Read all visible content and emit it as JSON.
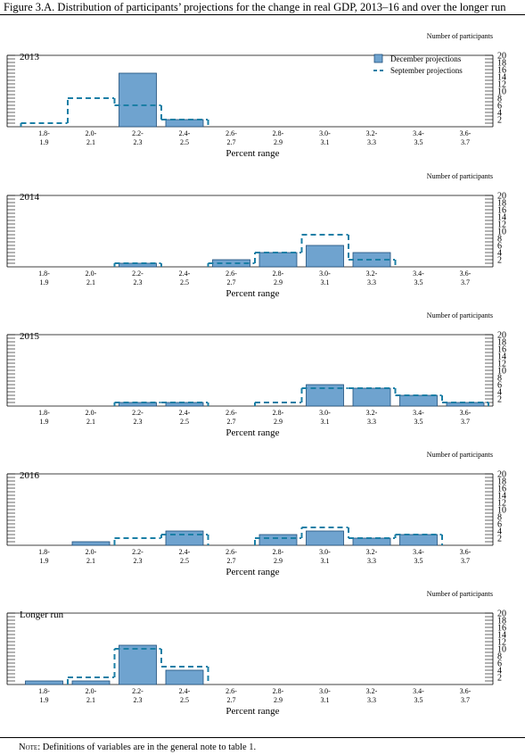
{
  "figure_title": "Figure 3.A. Distribution of participants’ projections for the change in real GDP, 2013–16 and over the longer run",
  "note_prefix": "Note:",
  "note_text": " Definitions of variables are in the general note to table 1.",
  "colors": {
    "bar_fill": "#6fa3cf",
    "bar_stroke": "#1f4e7a",
    "dash": "#1b7fa6"
  },
  "chart_data": [
    {
      "type": "bar",
      "title": "2013",
      "xlabel": "Percent range",
      "ylabel": "Number of participants",
      "categories": [
        [
          "1.8-",
          "1.9"
        ],
        [
          "2.0-",
          "2.1"
        ],
        [
          "2.2-",
          "2.3"
        ],
        [
          "2.4-",
          "2.5"
        ],
        [
          "2.6-",
          "2.7"
        ],
        [
          "2.8-",
          "2.9"
        ],
        [
          "3.0-",
          "3.1"
        ],
        [
          "3.2-",
          "3.3"
        ],
        [
          "3.4-",
          "3.5"
        ],
        [
          "3.6-",
          "3.7"
        ]
      ],
      "yticks": [
        2,
        4,
        6,
        8,
        10,
        12,
        14,
        16,
        18,
        20
      ],
      "ylim": [
        0,
        20
      ],
      "legend": {
        "position": "top-right",
        "entries": [
          "December projections",
          "September projections"
        ]
      },
      "series": [
        {
          "name": "December projections",
          "style": "bar",
          "values": [
            0,
            0,
            15,
            2,
            0,
            0,
            0,
            0,
            0,
            0
          ]
        },
        {
          "name": "September projections",
          "style": "dashed-step",
          "values": [
            1,
            8,
            6,
            2,
            0,
            0,
            0,
            0,
            0,
            0
          ]
        }
      ]
    },
    {
      "type": "bar",
      "title": "2014",
      "xlabel": "Percent range",
      "ylabel": "Number of participants",
      "categories": [
        [
          "1.8-",
          "1.9"
        ],
        [
          "2.0-",
          "2.1"
        ],
        [
          "2.2-",
          "2.3"
        ],
        [
          "2.4-",
          "2.5"
        ],
        [
          "2.6-",
          "2.7"
        ],
        [
          "2.8-",
          "2.9"
        ],
        [
          "3.0-",
          "3.1"
        ],
        [
          "3.2-",
          "3.3"
        ],
        [
          "3.4-",
          "3.5"
        ],
        [
          "3.6-",
          "3.7"
        ]
      ],
      "yticks": [
        2,
        4,
        6,
        8,
        10,
        12,
        14,
        16,
        18,
        20
      ],
      "ylim": [
        0,
        20
      ],
      "series": [
        {
          "name": "December projections",
          "style": "bar",
          "values": [
            0,
            0,
            1,
            0,
            2,
            4,
            6,
            4,
            0,
            0
          ]
        },
        {
          "name": "September projections",
          "style": "dashed-step",
          "values": [
            0,
            0,
            1,
            0,
            1,
            4,
            9,
            2,
            0,
            0
          ]
        }
      ]
    },
    {
      "type": "bar",
      "title": "2015",
      "xlabel": "Percent range",
      "ylabel": "Number of participants",
      "categories": [
        [
          "1.8-",
          "1.9"
        ],
        [
          "2.0-",
          "2.1"
        ],
        [
          "2.2-",
          "2.3"
        ],
        [
          "2.4-",
          "2.5"
        ],
        [
          "2.6-",
          "2.7"
        ],
        [
          "2.8-",
          "2.9"
        ],
        [
          "3.0-",
          "3.1"
        ],
        [
          "3.2-",
          "3.3"
        ],
        [
          "3.4-",
          "3.5"
        ],
        [
          "3.6-",
          "3.7"
        ]
      ],
      "yticks": [
        2,
        4,
        6,
        8,
        10,
        12,
        14,
        16,
        18,
        20
      ],
      "ylim": [
        0,
        20
      ],
      "series": [
        {
          "name": "December projections",
          "style": "bar",
          "values": [
            0,
            0,
            1,
            1,
            0,
            0,
            6,
            5,
            3,
            1
          ]
        },
        {
          "name": "September projections",
          "style": "dashed-step",
          "values": [
            0,
            0,
            1,
            1,
            0,
            1,
            5,
            5,
            3,
            1
          ]
        }
      ]
    },
    {
      "type": "bar",
      "title": "2016",
      "xlabel": "Percent range",
      "ylabel": "Number of participants",
      "categories": [
        [
          "1.8-",
          "1.9"
        ],
        [
          "2.0-",
          "2.1"
        ],
        [
          "2.2-",
          "2.3"
        ],
        [
          "2.4-",
          "2.5"
        ],
        [
          "2.6-",
          "2.7"
        ],
        [
          "2.8-",
          "2.9"
        ],
        [
          "3.0-",
          "3.1"
        ],
        [
          "3.2-",
          "3.3"
        ],
        [
          "3.4-",
          "3.5"
        ],
        [
          "3.6-",
          "3.7"
        ]
      ],
      "yticks": [
        2,
        4,
        6,
        8,
        10,
        12,
        14,
        16,
        18,
        20
      ],
      "ylim": [
        0,
        20
      ],
      "series": [
        {
          "name": "December projections",
          "style": "bar",
          "values": [
            0,
            1,
            0,
            4,
            0,
            3,
            4,
            2,
            3,
            0
          ]
        },
        {
          "name": "September projections",
          "style": "dashed-step",
          "values": [
            0,
            0,
            2,
            3,
            0,
            2,
            5,
            2,
            3,
            0
          ]
        }
      ]
    },
    {
      "type": "bar",
      "title": "Longer run",
      "xlabel": "Percent range",
      "ylabel": "Number of participants",
      "categories": [
        [
          "1.8-",
          "1.9"
        ],
        [
          "2.0-",
          "2.1"
        ],
        [
          "2.2-",
          "2.3"
        ],
        [
          "2.4-",
          "2.5"
        ],
        [
          "2.6-",
          "2.7"
        ],
        [
          "2.8-",
          "2.9"
        ],
        [
          "3.0-",
          "3.1"
        ],
        [
          "3.2-",
          "3.3"
        ],
        [
          "3.4-",
          "3.5"
        ],
        [
          "3.6-",
          "3.7"
        ]
      ],
      "yticks": [
        2,
        4,
        6,
        8,
        10,
        12,
        14,
        16,
        18,
        20
      ],
      "ylim": [
        0,
        20
      ],
      "series": [
        {
          "name": "December projections",
          "style": "bar",
          "values": [
            1,
            1,
            11,
            4,
            0,
            0,
            0,
            0,
            0,
            0
          ]
        },
        {
          "name": "September projections",
          "style": "dashed-step",
          "values": [
            0,
            2,
            10,
            5,
            0,
            0,
            0,
            0,
            0,
            0
          ]
        }
      ]
    }
  ]
}
